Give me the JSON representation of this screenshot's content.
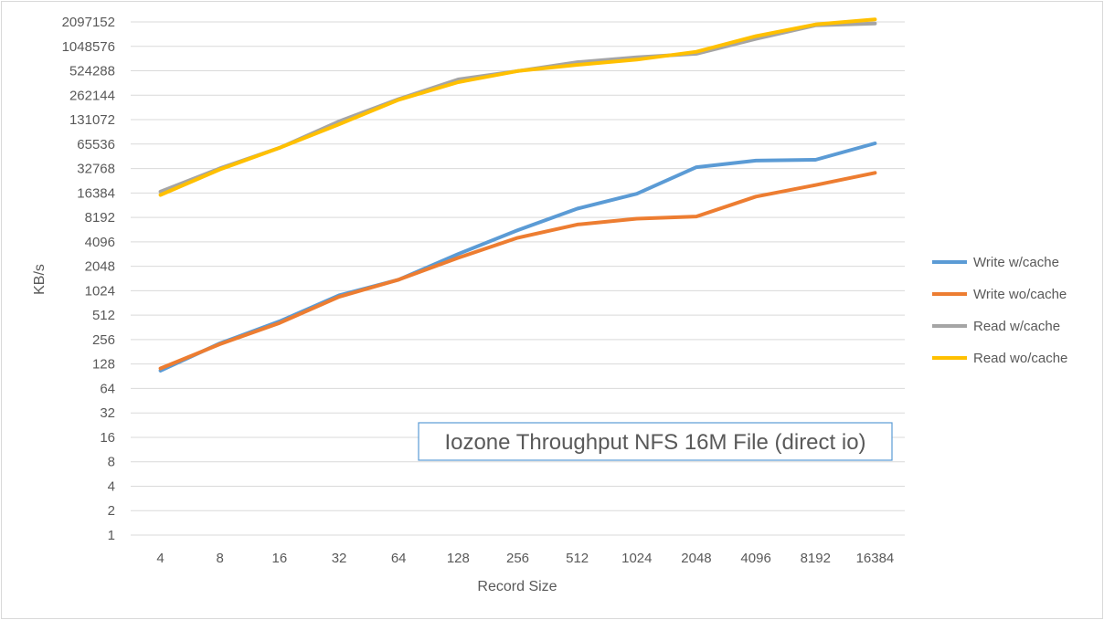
{
  "chart_data": {
    "type": "line",
    "title": "Iozone Throughput NFS 16M File (direct io)",
    "xlabel": "Record Size",
    "ylabel": "KB/s",
    "y_scale": "log2",
    "ylim": [
      1,
      2097152
    ],
    "grid": true,
    "legend_position": "right",
    "categories": [
      "4",
      "8",
      "16",
      "32",
      "64",
      "128",
      "256",
      "512",
      "1024",
      "2048",
      "4096",
      "8192",
      "16384"
    ],
    "y_ticks": [
      "1",
      "2",
      "4",
      "8",
      "16",
      "32",
      "64",
      "128",
      "256",
      "512",
      "1024",
      "2048",
      "4096",
      "8192",
      "16384",
      "32768",
      "65536",
      "131072",
      "262144",
      "524288",
      "1048576",
      "2097152"
    ],
    "series": [
      {
        "name": "Write w/cache",
        "color": "#5b9bd5",
        "values": [
          106,
          230,
          430,
          900,
          1400,
          2900,
          5700,
          10500,
          16000,
          34000,
          41000,
          42000,
          67000
        ]
      },
      {
        "name": "Write wo/cache",
        "color": "#ed7d31",
        "values": [
          113,
          225,
          410,
          860,
          1400,
          2600,
          4600,
          6700,
          7900,
          8400,
          14800,
          20500,
          29000
        ]
      },
      {
        "name": "Read w/cache",
        "color": "#a5a5a5",
        "values": [
          17000,
          33000,
          59000,
          125000,
          235000,
          410000,
          520000,
          670000,
          770000,
          850000,
          1300000,
          1900000,
          2000000
        ]
      },
      {
        "name": "Read wo/cache",
        "color": "#ffc000",
        "values": [
          15500,
          32000,
          59000,
          115000,
          230000,
          380000,
          520000,
          620000,
          720000,
          900000,
          1400000,
          1950000,
          2250000
        ]
      }
    ]
  }
}
